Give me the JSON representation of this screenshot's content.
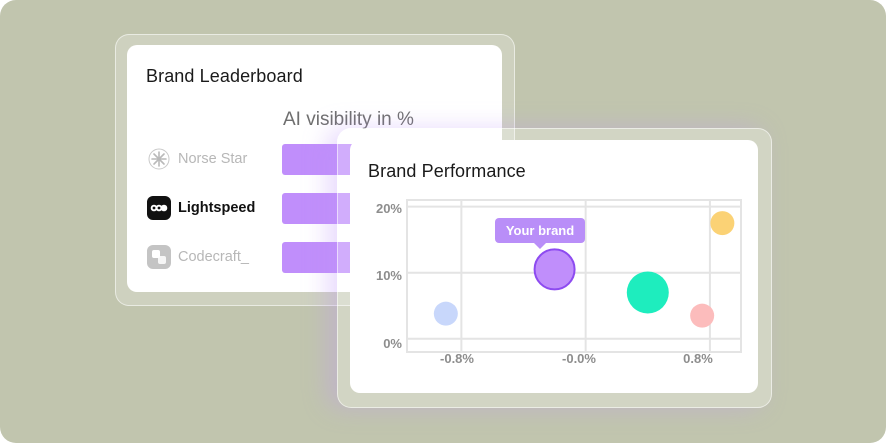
{
  "leaderboard": {
    "title": "Brand Leaderboard",
    "column_header": "AI visibility in %",
    "brands": [
      {
        "name": "Norse Star",
        "icon": "asterisk-star-icon",
        "highlighted": false,
        "bar_color": "#c08efb"
      },
      {
        "name": "Lightspeed",
        "icon": "lightspeed-logo-icon",
        "highlighted": true,
        "bar_color": "#c08efb"
      },
      {
        "name": "Codecraft_",
        "icon": "codecraft-logo-icon",
        "highlighted": false,
        "bar_color": "#c08efb"
      }
    ]
  },
  "performance": {
    "title": "Brand Performance",
    "tooltip": "Your brand"
  },
  "chart_data": {
    "type": "scatter",
    "title": "Brand Performance",
    "xlabel": "",
    "ylabel": "",
    "x_ticks": [
      "-0.8%",
      "-0.0%",
      "0.8%"
    ],
    "y_ticks": [
      "0%",
      "10%",
      "20%"
    ],
    "xlim": [
      -1.15,
      1.0
    ],
    "ylim": [
      -2,
      21
    ],
    "grid": true,
    "series": [
      {
        "x": -0.2,
        "y": 10.5,
        "r": 20,
        "color": "#c08efb",
        "stroke": "#8d4bf0",
        "label": "Your brand"
      },
      {
        "x": -0.9,
        "y": 3.8,
        "r": 12,
        "color": "#c8d7fb"
      },
      {
        "x": 0.4,
        "y": 7.0,
        "r": 21,
        "color": "#1eedbe"
      },
      {
        "x": 0.75,
        "y": 3.5,
        "r": 12,
        "color": "#fcbcbc"
      },
      {
        "x": 0.88,
        "y": 17.5,
        "r": 12,
        "color": "#fbd275"
      }
    ]
  }
}
